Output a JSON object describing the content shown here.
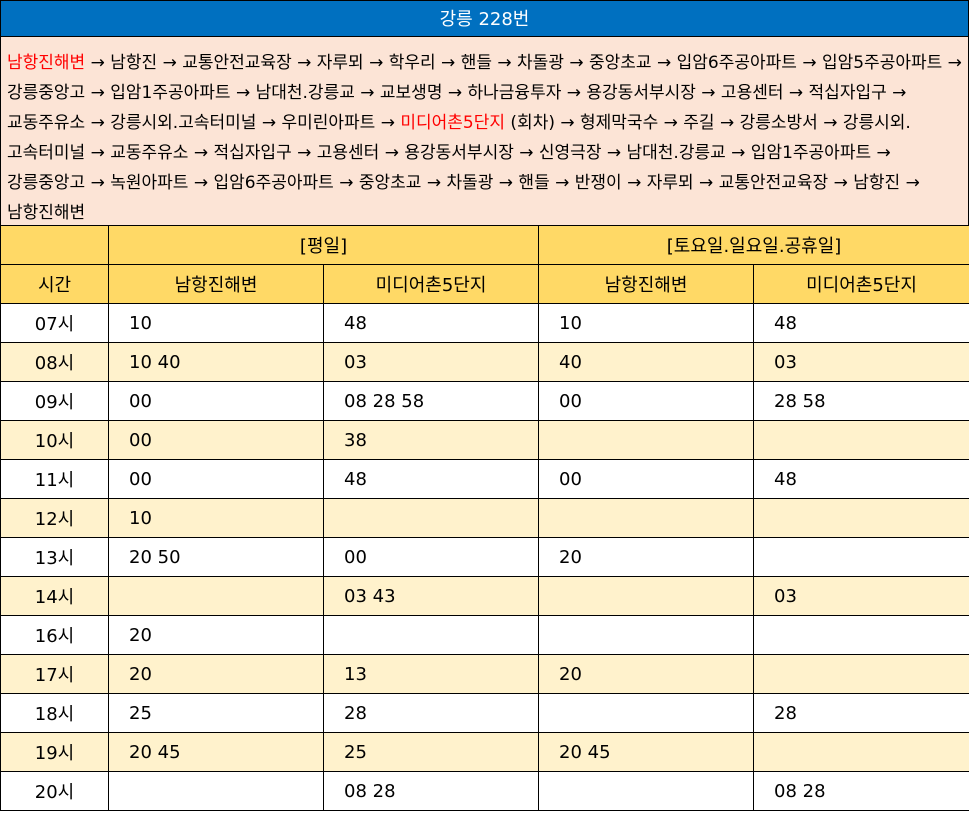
{
  "title": "강릉 228번",
  "route": {
    "start": "남항진해변",
    "part1": " → 남항진 → 교통안전교육장 → 자루뫼 → 학우리 → 핸들 → 차돌광 → 중앙초교 → 입암6주공아파트 → 입암5주공아파트 → 강릉중앙고 → 입암1주공아파트 → 남대천.강릉교 → 교보생명 → 하나금융투자 → 용강동서부시장 → 고용센터 → 적십자입구 → 교동주유소 → 강릉시외.고속터미널 → 우미린아파트 → ",
    "turn": "미디어촌5단지",
    "part2": " (회차) → 형제막국수 → 주길 → 강릉소방서 → 강릉시외.고속터미널 → 교동주유소 → 적십자입구 → 고용센터 → 용강동서부시장 → 신영극장 → 남대천.강릉교 → 입암1주공아파트 → 강릉중앙고 → 녹원아파트 → 입암6주공아파트 → 중앙초교 → 차돌광 → 핸들 → 반쟁이 → 자루뫼 → 교통안전교육장 → 남항진 → 남항진해변"
  },
  "colors": {
    "title_bg": "#0070c0",
    "route_bg": "#fce4d6",
    "header_bg": "#ffd966",
    "alt_row_bg": "#fff2cc",
    "highlight": "#ff0000"
  },
  "table": {
    "group_headers": [
      "[평일]",
      "[토요일.일요일.공휴일]"
    ],
    "headers": [
      "시간",
      "남항진해변",
      "미디어촌5단지",
      "남항진해변",
      "미디어촌5단지"
    ],
    "rows": [
      [
        "07시",
        "10",
        "48",
        "10",
        "48"
      ],
      [
        "08시",
        "10 40",
        "03",
        "40",
        "03"
      ],
      [
        "09시",
        "00",
        "08 28 58",
        "00",
        "28 58"
      ],
      [
        "10시",
        "00",
        "38",
        "",
        ""
      ],
      [
        "11시",
        "00",
        "48",
        "00",
        "48"
      ],
      [
        "12시",
        "10",
        "",
        "",
        ""
      ],
      [
        "13시",
        "20 50",
        "00",
        "20",
        ""
      ],
      [
        "14시",
        "",
        "03 43",
        "",
        "03"
      ],
      [
        "16시",
        "20",
        "",
        "",
        ""
      ],
      [
        "17시",
        "20",
        "13",
        "20",
        ""
      ],
      [
        "18시",
        "25",
        "28",
        "",
        "28"
      ],
      [
        "19시",
        "20 45",
        "25",
        "20 45",
        ""
      ],
      [
        "20시",
        "",
        "08 28",
        "",
        "08 28"
      ]
    ]
  }
}
